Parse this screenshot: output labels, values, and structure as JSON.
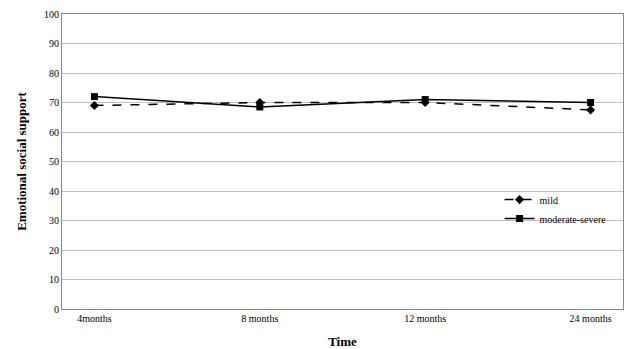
{
  "chart_data": {
    "type": "line",
    "x_label": "Time",
    "y_label": "Emotional social support",
    "categories": [
      "4months",
      "8 months",
      "12 months",
      "24 months"
    ],
    "series": [
      {
        "name": "mild",
        "color": "#000000",
        "marker": "diamond",
        "line_style": "dash",
        "values": [
          69,
          70,
          70,
          67.5
        ]
      },
      {
        "name": "moderate-severe",
        "color": "#000000",
        "marker": "square",
        "line_style": "solid",
        "values": [
          72,
          68.5,
          71,
          70
        ]
      }
    ],
    "ylim": [
      0,
      100
    ],
    "yticks": [
      0,
      10,
      20,
      30,
      40,
      50,
      60,
      70,
      80,
      90,
      100
    ],
    "grid": true,
    "legend": "right"
  }
}
